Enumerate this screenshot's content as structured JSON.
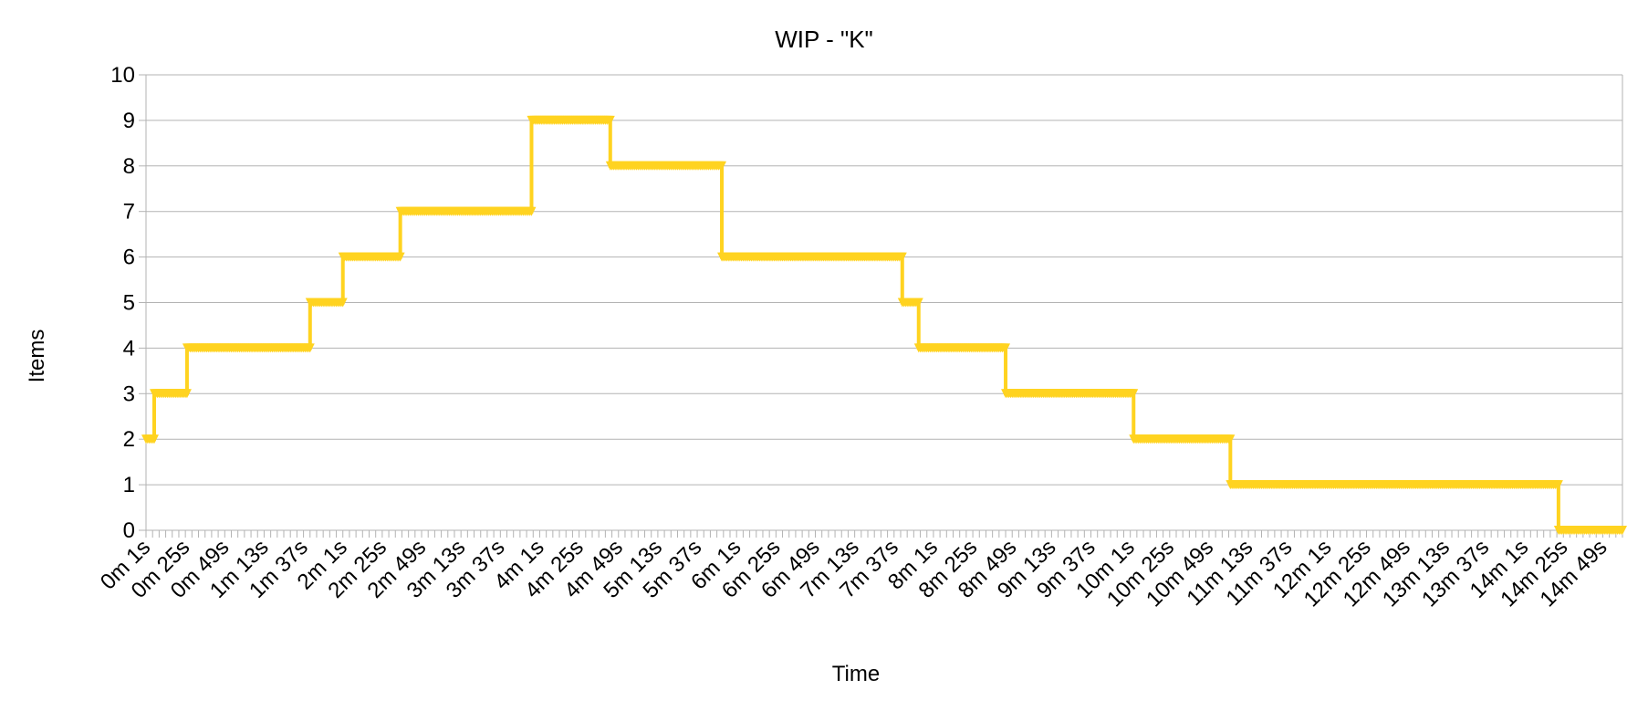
{
  "chart_data": {
    "type": "line",
    "title": "WIP - \"K\"",
    "xlabel": "Time",
    "ylabel": "Items",
    "ylim": [
      0,
      10
    ],
    "yticks": [
      "0",
      "1",
      "2",
      "3",
      "4",
      "5",
      "6",
      "7",
      "8",
      "9",
      "10"
    ],
    "grid": true,
    "legend": "none",
    "xlim": [
      1,
      901
    ],
    "x_tick_labels": [
      "0m 1s",
      "0m 25s",
      "0m 49s",
      "1m 13s",
      "1m 37s",
      "2m 1s",
      "2m 25s",
      "2m 49s",
      "3m 13s",
      "3m 37s",
      "4m 1s",
      "4m 25s",
      "4m 49s",
      "5m 13s",
      "5m 37s",
      "6m 1s",
      "6m 25s",
      "6m 49s",
      "7m 13s",
      "7m 37s",
      "8m 1s",
      "8m 25s",
      "8m 49s",
      "9m 13s",
      "9m 37s",
      "10m 1s",
      "10m 25s",
      "10m 49s",
      "11m 13s",
      "11m 37s",
      "12m 1s",
      "12m 25s",
      "12m 49s",
      "13m 13s",
      "13m 37s",
      "14m 1s",
      "14m 25s",
      "14m 49s"
    ],
    "series": [
      {
        "color": "#ffd320",
        "marker": "triangle-down",
        "points": [
          {
            "x": 1,
            "y": 2
          },
          {
            "x": 6,
            "y": 2
          },
          {
            "x": 6,
            "y": 3
          },
          {
            "x": 26,
            "y": 3
          },
          {
            "x": 26,
            "y": 4
          },
          {
            "x": 101,
            "y": 4
          },
          {
            "x": 101,
            "y": 5
          },
          {
            "x": 121,
            "y": 5
          },
          {
            "x": 121,
            "y": 6
          },
          {
            "x": 156,
            "y": 6
          },
          {
            "x": 156,
            "y": 7
          },
          {
            "x": 236,
            "y": 7
          },
          {
            "x": 236,
            "y": 9
          },
          {
            "x": 284,
            "y": 9
          },
          {
            "x": 284,
            "y": 8
          },
          {
            "x": 352,
            "y": 8
          },
          {
            "x": 352,
            "y": 6
          },
          {
            "x": 462,
            "y": 6
          },
          {
            "x": 462,
            "y": 5
          },
          {
            "x": 472,
            "y": 5
          },
          {
            "x": 472,
            "y": 4
          },
          {
            "x": 525,
            "y": 4
          },
          {
            "x": 525,
            "y": 3
          },
          {
            "x": 603,
            "y": 3
          },
          {
            "x": 603,
            "y": 2
          },
          {
            "x": 662,
            "y": 2
          },
          {
            "x": 662,
            "y": 1
          },
          {
            "x": 862,
            "y": 1
          },
          {
            "x": 862,
            "y": 0
          },
          {
            "x": 901,
            "y": 0
          }
        ]
      }
    ]
  }
}
